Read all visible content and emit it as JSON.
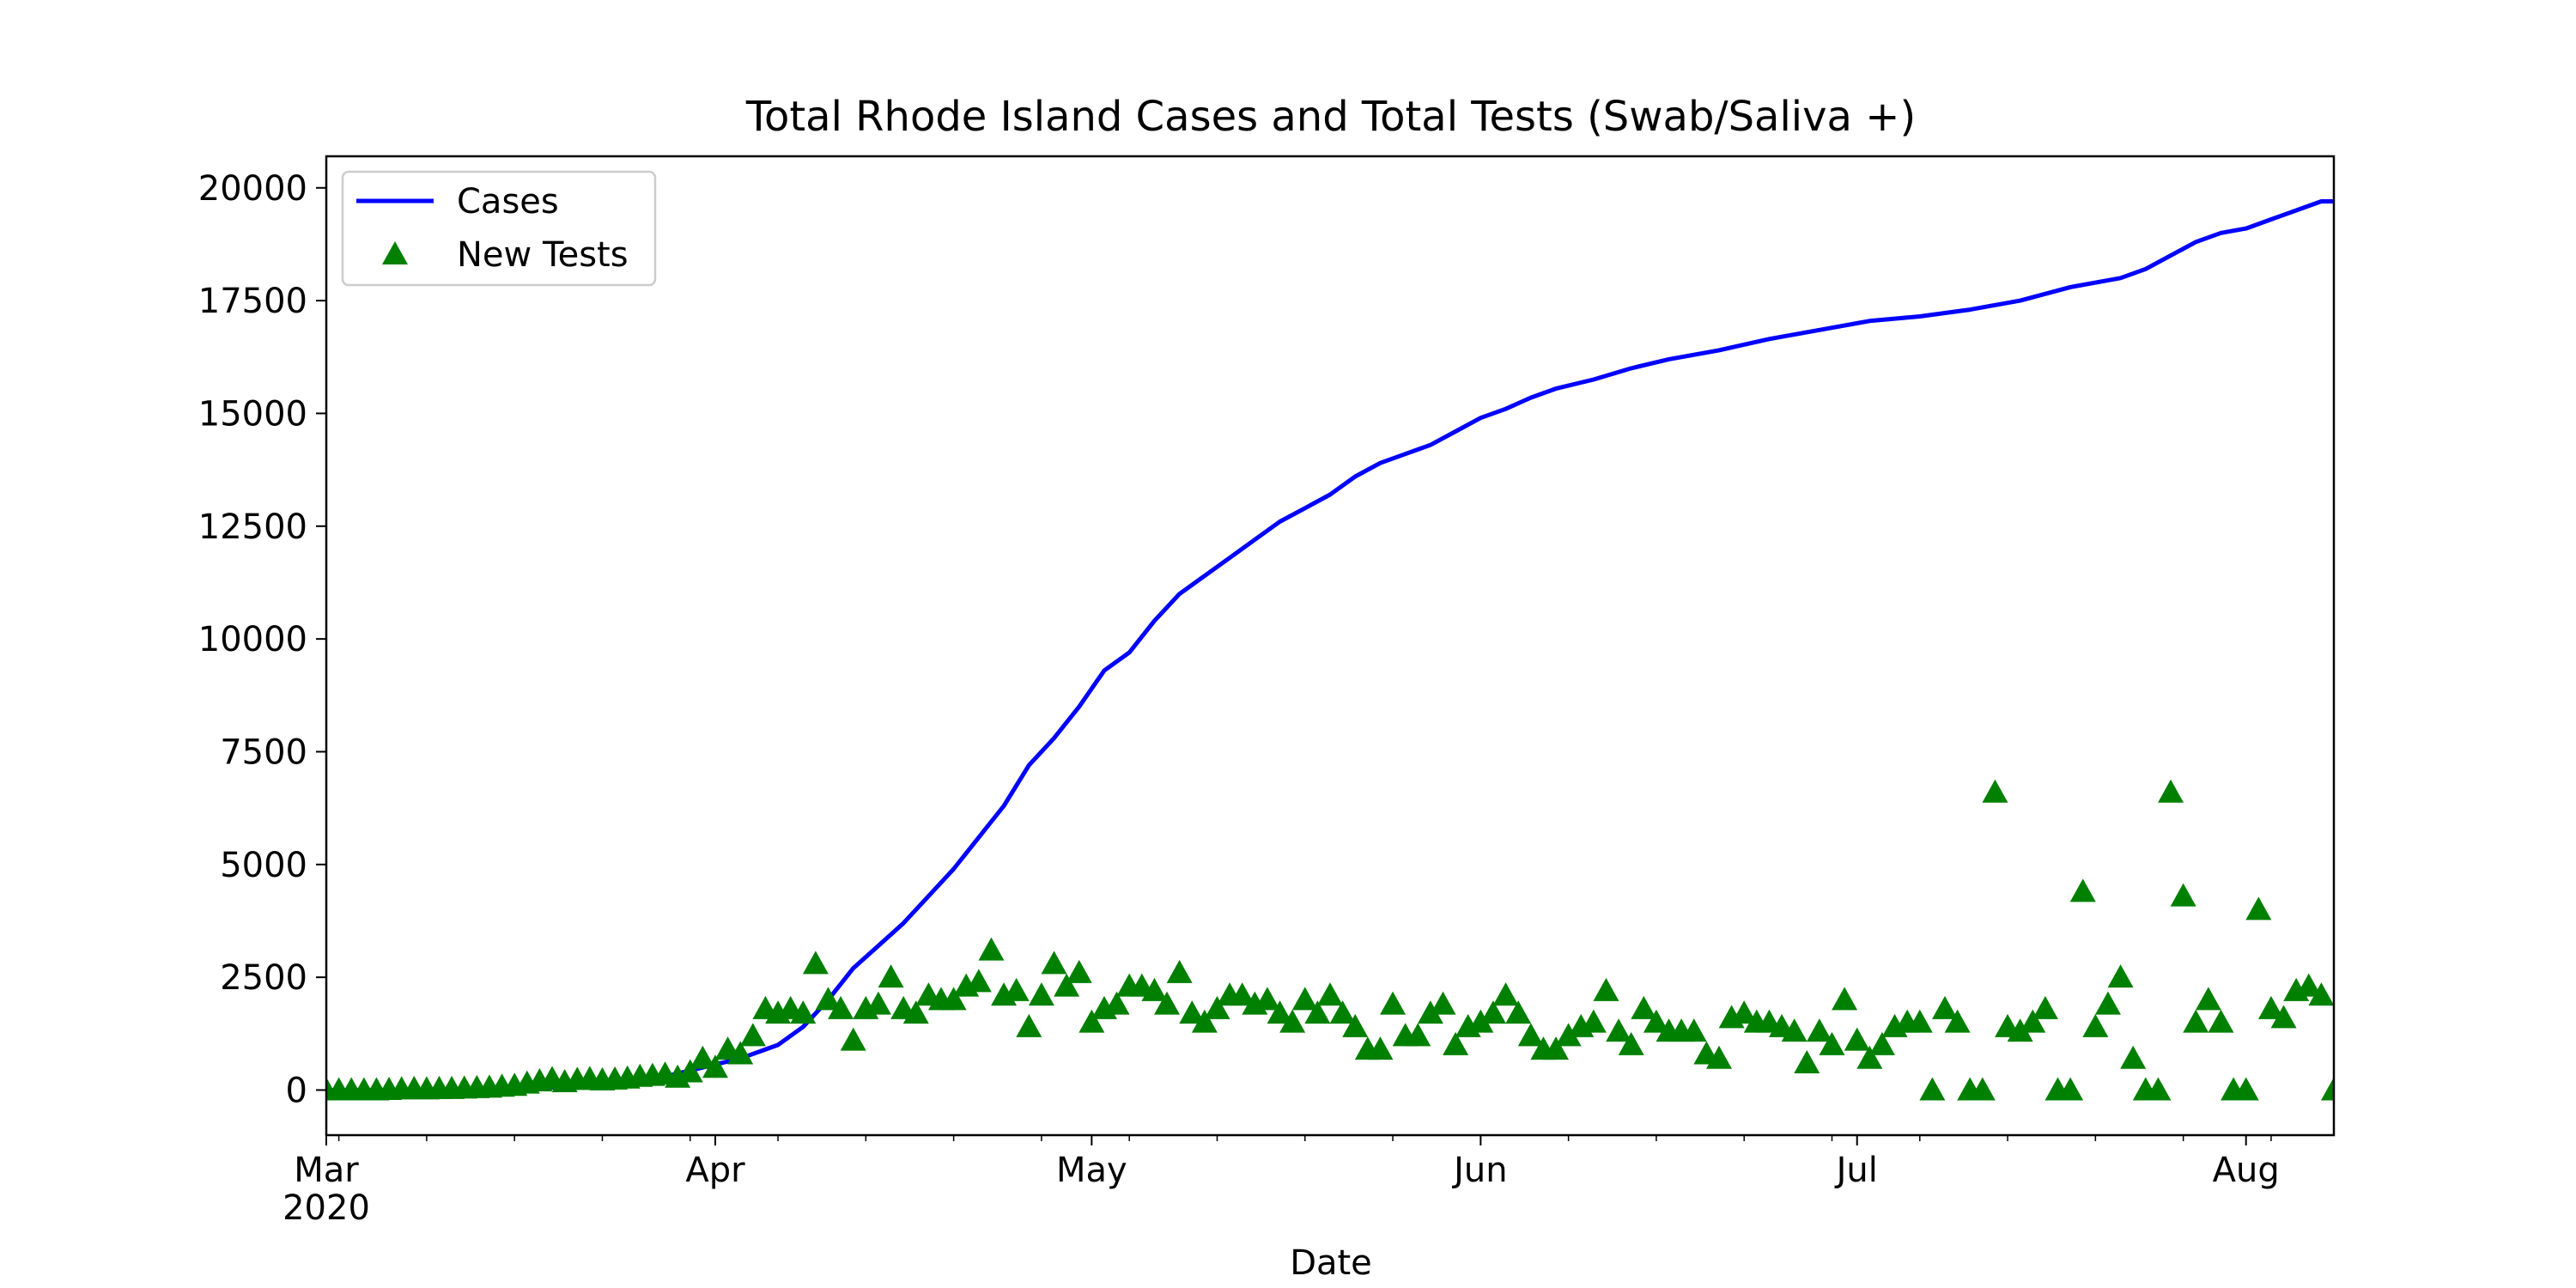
{
  "chart_data": {
    "type": "line+scatter",
    "title": "Total Rhode Island Cases and Total Tests (Swab/Saliva +)",
    "xlabel": "Date",
    "ylabel": "",
    "xlim": [
      "2020-03-01",
      "2020-08-08"
    ],
    "ylim": [
      -1000,
      20700
    ],
    "grid": false,
    "legend_position": "upper-left",
    "x_ticks": [
      {
        "date": "2020-03-01",
        "label": "Mar",
        "sublabel": "2020"
      },
      {
        "date": "2020-04-01",
        "label": "Apr",
        "sublabel": ""
      },
      {
        "date": "2020-05-01",
        "label": "May",
        "sublabel": ""
      },
      {
        "date": "2020-06-01",
        "label": "Jun",
        "sublabel": ""
      },
      {
        "date": "2020-07-01",
        "label": "Jul",
        "sublabel": ""
      },
      {
        "date": "2020-08-01",
        "label": "Aug",
        "sublabel": ""
      }
    ],
    "y_ticks": [
      0,
      2500,
      5000,
      7500,
      10000,
      12500,
      15000,
      17500,
      20000
    ],
    "y_tick_labels": [
      "0",
      "2500",
      "5000",
      "7500",
      "10000",
      "12500",
      "15000",
      "17500",
      "20000"
    ],
    "series": [
      {
        "name": "Cases",
        "type": "line",
        "color": "#0000ff",
        "points": [
          [
            "2020-03-01",
            0
          ],
          [
            "2020-03-10",
            5
          ],
          [
            "2020-03-15",
            30
          ],
          [
            "2020-03-20",
            60
          ],
          [
            "2020-03-25",
            160
          ],
          [
            "2020-03-28",
            300
          ],
          [
            "2020-03-31",
            500
          ],
          [
            "2020-04-03",
            700
          ],
          [
            "2020-04-06",
            1000
          ],
          [
            "2020-04-08",
            1400
          ],
          [
            "2020-04-10",
            2000
          ],
          [
            "2020-04-12",
            2700
          ],
          [
            "2020-04-14",
            3200
          ],
          [
            "2020-04-16",
            3700
          ],
          [
            "2020-04-18",
            4300
          ],
          [
            "2020-04-20",
            4900
          ],
          [
            "2020-04-22",
            5600
          ],
          [
            "2020-04-24",
            6300
          ],
          [
            "2020-04-26",
            7200
          ],
          [
            "2020-04-28",
            7800
          ],
          [
            "2020-04-30",
            8500
          ],
          [
            "2020-05-02",
            9300
          ],
          [
            "2020-05-04",
            9700
          ],
          [
            "2020-05-06",
            10400
          ],
          [
            "2020-05-08",
            11000
          ],
          [
            "2020-05-10",
            11400
          ],
          [
            "2020-05-12",
            11800
          ],
          [
            "2020-05-14",
            12200
          ],
          [
            "2020-05-16",
            12600
          ],
          [
            "2020-05-18",
            12900
          ],
          [
            "2020-05-20",
            13200
          ],
          [
            "2020-05-22",
            13600
          ],
          [
            "2020-05-24",
            13900
          ],
          [
            "2020-05-26",
            14100
          ],
          [
            "2020-05-28",
            14300
          ],
          [
            "2020-05-30",
            14600
          ],
          [
            "2020-06-01",
            14900
          ],
          [
            "2020-06-03",
            15100
          ],
          [
            "2020-06-05",
            15350
          ],
          [
            "2020-06-07",
            15550
          ],
          [
            "2020-06-10",
            15750
          ],
          [
            "2020-06-13",
            16000
          ],
          [
            "2020-06-16",
            16200
          ],
          [
            "2020-06-20",
            16400
          ],
          [
            "2020-06-24",
            16650
          ],
          [
            "2020-06-28",
            16850
          ],
          [
            "2020-07-02",
            17050
          ],
          [
            "2020-07-06",
            17150
          ],
          [
            "2020-07-10",
            17300
          ],
          [
            "2020-07-14",
            17500
          ],
          [
            "2020-07-18",
            17800
          ],
          [
            "2020-07-22",
            18000
          ],
          [
            "2020-07-24",
            18200
          ],
          [
            "2020-07-26",
            18500
          ],
          [
            "2020-07-28",
            18800
          ],
          [
            "2020-07-30",
            19000
          ],
          [
            "2020-08-01",
            19100
          ],
          [
            "2020-08-03",
            19300
          ],
          [
            "2020-08-05",
            19500
          ],
          [
            "2020-08-07",
            19700
          ],
          [
            "2020-08-08",
            19700
          ]
        ]
      },
      {
        "name": "New Tests",
        "type": "scatter",
        "marker": "triangle-up",
        "color": "#008000",
        "points": [
          [
            "2020-03-01",
            0
          ],
          [
            "2020-03-02",
            0
          ],
          [
            "2020-03-03",
            0
          ],
          [
            "2020-03-04",
            0
          ],
          [
            "2020-03-05",
            0
          ],
          [
            "2020-03-06",
            10
          ],
          [
            "2020-03-07",
            20
          ],
          [
            "2020-03-08",
            30
          ],
          [
            "2020-03-09",
            20
          ],
          [
            "2020-03-10",
            30
          ],
          [
            "2020-03-11",
            30
          ],
          [
            "2020-03-12",
            40
          ],
          [
            "2020-03-13",
            50
          ],
          [
            "2020-03-14",
            60
          ],
          [
            "2020-03-15",
            80
          ],
          [
            "2020-03-16",
            100
          ],
          [
            "2020-03-17",
            150
          ],
          [
            "2020-03-18",
            200
          ],
          [
            "2020-03-19",
            250
          ],
          [
            "2020-03-20",
            180
          ],
          [
            "2020-03-21",
            230
          ],
          [
            "2020-03-22",
            250
          ],
          [
            "2020-03-23",
            220
          ],
          [
            "2020-03-24",
            240
          ],
          [
            "2020-03-25",
            260
          ],
          [
            "2020-03-26",
            300
          ],
          [
            "2020-03-27",
            320
          ],
          [
            "2020-03-28",
            350
          ],
          [
            "2020-03-29",
            280
          ],
          [
            "2020-03-30",
            400
          ],
          [
            "2020-03-31",
            700
          ],
          [
            "2020-04-01",
            500
          ],
          [
            "2020-04-02",
            900
          ],
          [
            "2020-04-03",
            800
          ],
          [
            "2020-04-04",
            1200
          ],
          [
            "2020-04-05",
            1800
          ],
          [
            "2020-04-06",
            1700
          ],
          [
            "2020-04-07",
            1800
          ],
          [
            "2020-04-08",
            1700
          ],
          [
            "2020-04-09",
            2800
          ],
          [
            "2020-04-10",
            2000
          ],
          [
            "2020-04-11",
            1800
          ],
          [
            "2020-04-12",
            1100
          ],
          [
            "2020-04-13",
            1800
          ],
          [
            "2020-04-14",
            1900
          ],
          [
            "2020-04-15",
            2500
          ],
          [
            "2020-04-16",
            1800
          ],
          [
            "2020-04-17",
            1700
          ],
          [
            "2020-04-18",
            2100
          ],
          [
            "2020-04-19",
            2000
          ],
          [
            "2020-04-20",
            2000
          ],
          [
            "2020-04-21",
            2300
          ],
          [
            "2020-04-22",
            2400
          ],
          [
            "2020-04-23",
            3100
          ],
          [
            "2020-04-24",
            2100
          ],
          [
            "2020-04-25",
            2200
          ],
          [
            "2020-04-26",
            1400
          ],
          [
            "2020-04-27",
            2100
          ],
          [
            "2020-04-28",
            2800
          ],
          [
            "2020-04-29",
            2300
          ],
          [
            "2020-04-30",
            2600
          ],
          [
            "2020-05-01",
            1500
          ],
          [
            "2020-05-02",
            1800
          ],
          [
            "2020-05-03",
            1900
          ],
          [
            "2020-05-04",
            2300
          ],
          [
            "2020-05-05",
            2300
          ],
          [
            "2020-05-06",
            2200
          ],
          [
            "2020-05-07",
            1900
          ],
          [
            "2020-05-08",
            2600
          ],
          [
            "2020-05-09",
            1700
          ],
          [
            "2020-05-10",
            1500
          ],
          [
            "2020-05-11",
            1800
          ],
          [
            "2020-05-12",
            2100
          ],
          [
            "2020-05-13",
            2100
          ],
          [
            "2020-05-14",
            1900
          ],
          [
            "2020-05-15",
            2000
          ],
          [
            "2020-05-16",
            1700
          ],
          [
            "2020-05-17",
            1500
          ],
          [
            "2020-05-18",
            2000
          ],
          [
            "2020-05-19",
            1700
          ],
          [
            "2020-05-20",
            2100
          ],
          [
            "2020-05-21",
            1700
          ],
          [
            "2020-05-22",
            1400
          ],
          [
            "2020-05-23",
            900
          ],
          [
            "2020-05-24",
            900
          ],
          [
            "2020-05-25",
            1900
          ],
          [
            "2020-05-26",
            1200
          ],
          [
            "2020-05-27",
            1200
          ],
          [
            "2020-05-28",
            1700
          ],
          [
            "2020-05-29",
            1900
          ],
          [
            "2020-05-30",
            1000
          ],
          [
            "2020-05-31",
            1400
          ],
          [
            "2020-06-01",
            1500
          ],
          [
            "2020-06-02",
            1700
          ],
          [
            "2020-06-03",
            2100
          ],
          [
            "2020-06-04",
            1700
          ],
          [
            "2020-06-05",
            1200
          ],
          [
            "2020-06-06",
            900
          ],
          [
            "2020-06-07",
            900
          ],
          [
            "2020-06-08",
            1200
          ],
          [
            "2020-06-09",
            1400
          ],
          [
            "2020-06-10",
            1500
          ],
          [
            "2020-06-11",
            2200
          ],
          [
            "2020-06-12",
            1300
          ],
          [
            "2020-06-13",
            1000
          ],
          [
            "2020-06-14",
            1800
          ],
          [
            "2020-06-15",
            1500
          ],
          [
            "2020-06-16",
            1300
          ],
          [
            "2020-06-17",
            1300
          ],
          [
            "2020-06-18",
            1300
          ],
          [
            "2020-06-19",
            800
          ],
          [
            "2020-06-20",
            700
          ],
          [
            "2020-06-21",
            1600
          ],
          [
            "2020-06-22",
            1700
          ],
          [
            "2020-06-23",
            1500
          ],
          [
            "2020-06-24",
            1500
          ],
          [
            "2020-06-25",
            1400
          ],
          [
            "2020-06-26",
            1300
          ],
          [
            "2020-06-27",
            600
          ],
          [
            "2020-06-28",
            1300
          ],
          [
            "2020-06-29",
            1000
          ],
          [
            "2020-06-30",
            2000
          ],
          [
            "2020-07-01",
            1100
          ],
          [
            "2020-07-02",
            700
          ],
          [
            "2020-07-03",
            1000
          ],
          [
            "2020-07-04",
            1400
          ],
          [
            "2020-07-05",
            1500
          ],
          [
            "2020-07-06",
            1500
          ],
          [
            "2020-07-07",
            0
          ],
          [
            "2020-07-08",
            1800
          ],
          [
            "2020-07-09",
            1500
          ],
          [
            "2020-07-10",
            0
          ],
          [
            "2020-07-11",
            0
          ],
          [
            "2020-07-12",
            6600
          ],
          [
            "2020-07-13",
            1400
          ],
          [
            "2020-07-14",
            1300
          ],
          [
            "2020-07-15",
            1500
          ],
          [
            "2020-07-16",
            1800
          ],
          [
            "2020-07-17",
            0
          ],
          [
            "2020-07-18",
            0
          ],
          [
            "2020-07-19",
            4400
          ],
          [
            "2020-07-20",
            1400
          ],
          [
            "2020-07-21",
            1900
          ],
          [
            "2020-07-22",
            2500
          ],
          [
            "2020-07-23",
            700
          ],
          [
            "2020-07-24",
            0
          ],
          [
            "2020-07-25",
            0
          ],
          [
            "2020-07-26",
            6600
          ],
          [
            "2020-07-27",
            4300
          ],
          [
            "2020-07-28",
            1500
          ],
          [
            "2020-07-29",
            2000
          ],
          [
            "2020-07-30",
            1500
          ],
          [
            "2020-07-31",
            0
          ],
          [
            "2020-08-01",
            0
          ],
          [
            "2020-08-02",
            4000
          ],
          [
            "2020-08-03",
            1800
          ],
          [
            "2020-08-04",
            1600
          ],
          [
            "2020-08-05",
            2200
          ],
          [
            "2020-08-06",
            2300
          ],
          [
            "2020-08-07",
            2100
          ],
          [
            "2020-08-08",
            0
          ]
        ]
      }
    ]
  }
}
